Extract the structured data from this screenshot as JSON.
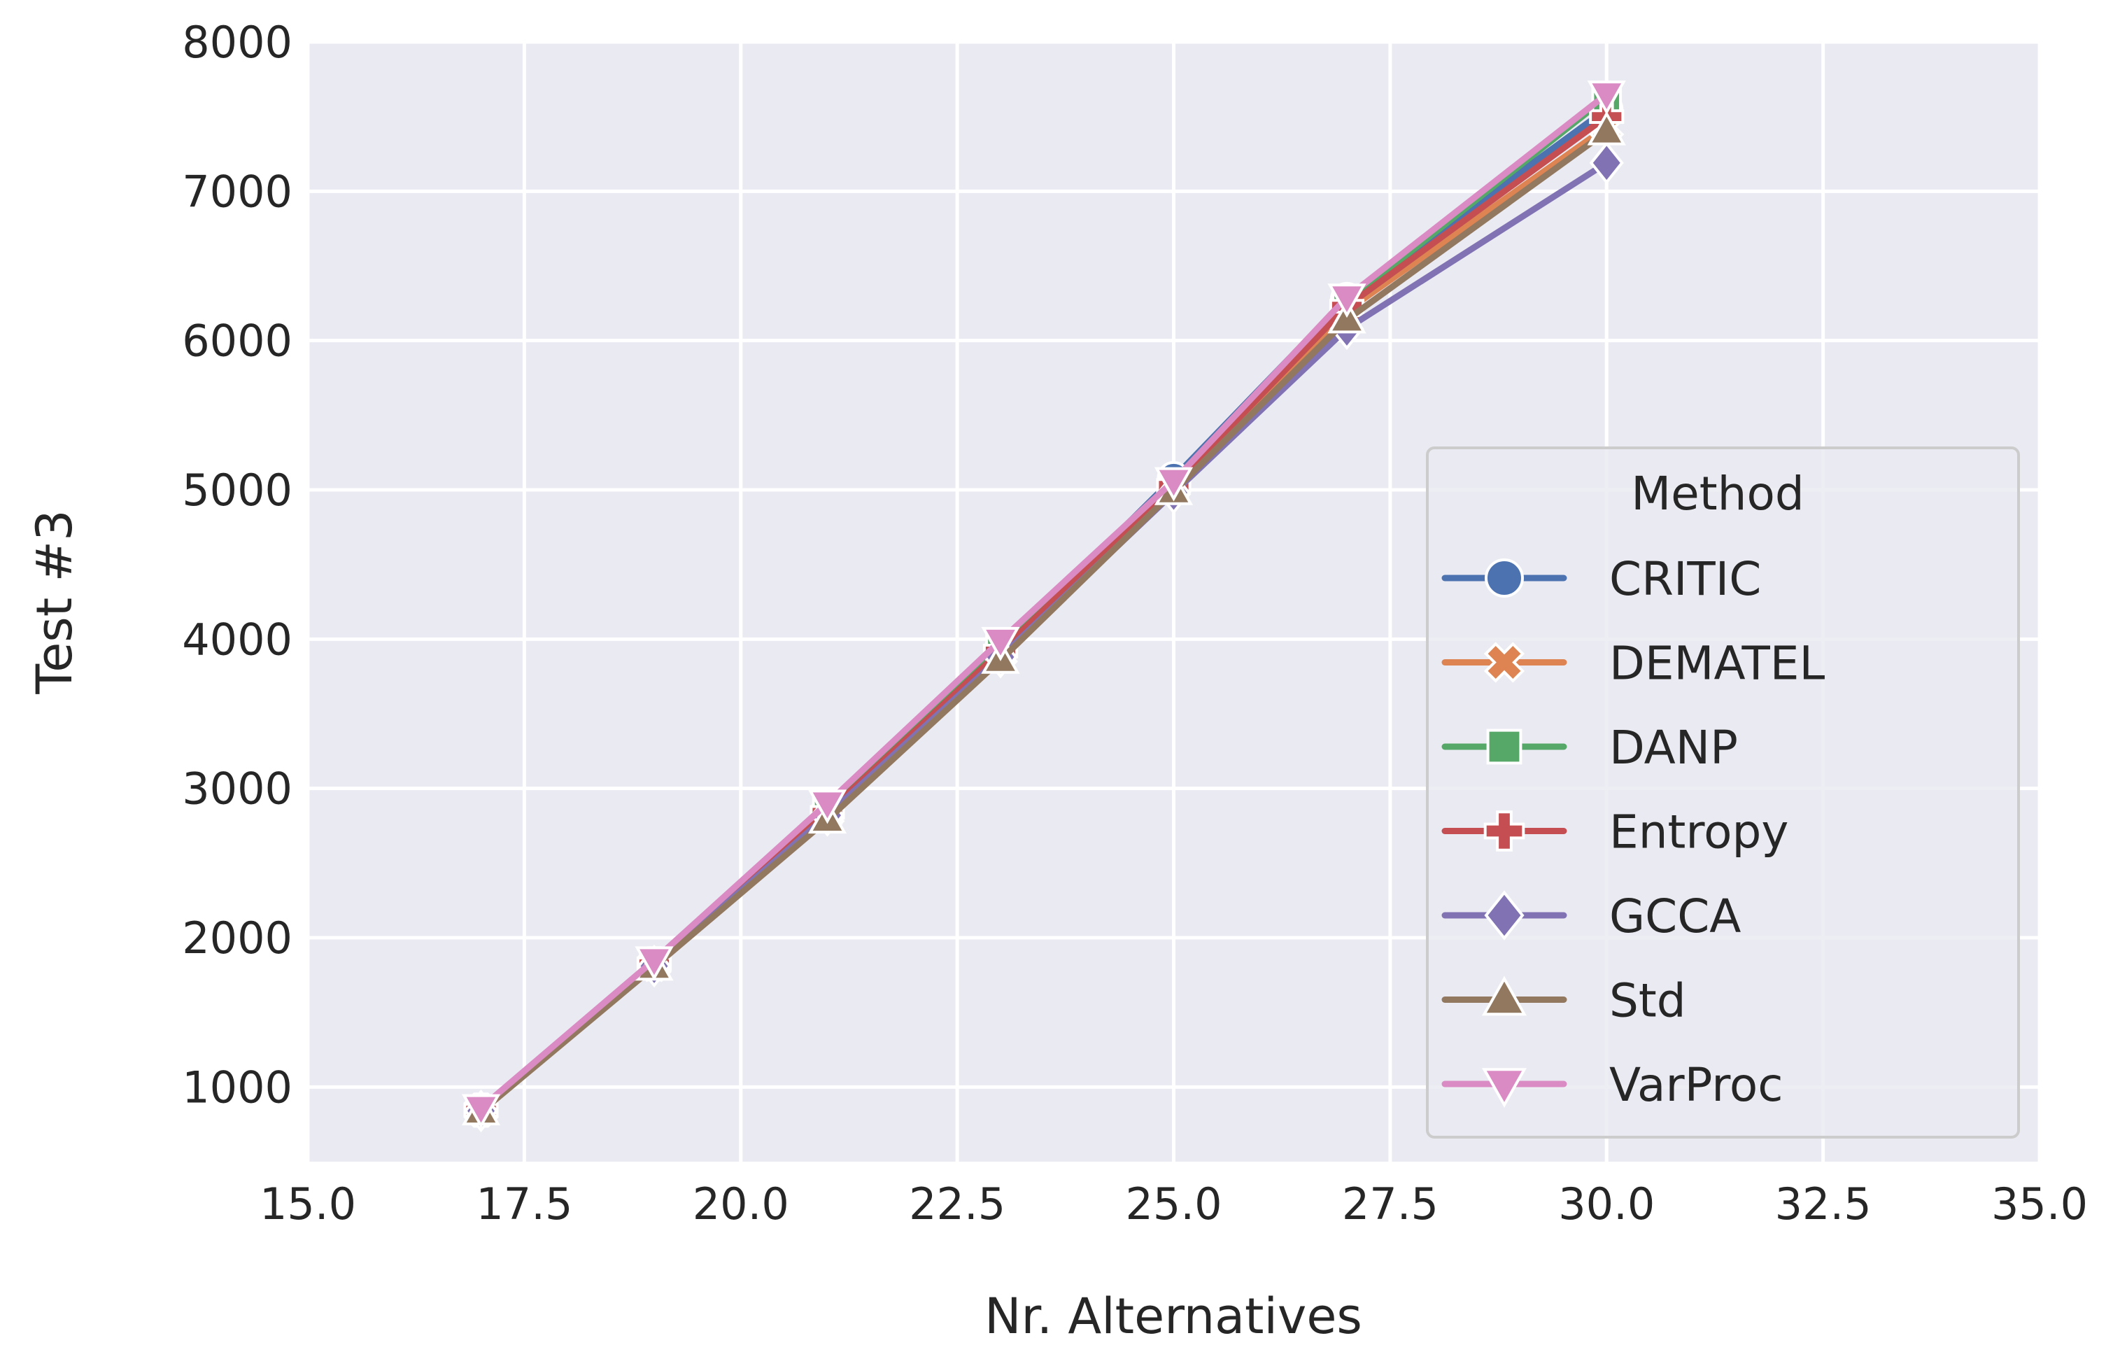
{
  "chart_data": {
    "type": "line",
    "title": "",
    "xlabel": "Nr. Alternatives",
    "ylabel": "Test #3",
    "xlim": [
      15.0,
      35.0
    ],
    "ylim": [
      500,
      8000
    ],
    "xticks": [
      "15.0",
      "17.5",
      "20.0",
      "22.5",
      "25.0",
      "27.5",
      "30.0",
      "32.5",
      "35.0"
    ],
    "xtick_values": [
      15.0,
      17.5,
      20.0,
      22.5,
      25.0,
      27.5,
      30.0,
      32.5,
      35.0
    ],
    "yticks": [
      "1000",
      "2000",
      "3000",
      "4000",
      "5000",
      "6000",
      "7000",
      "8000"
    ],
    "ytick_values": [
      1000,
      2000,
      3000,
      4000,
      5000,
      6000,
      7000,
      8000
    ],
    "grid": true,
    "x": [
      17,
      19,
      21,
      23,
      25,
      27,
      30
    ],
    "legend": {
      "title": "Method",
      "position": "lower-right"
    },
    "series": [
      {
        "name": "CRITIC",
        "color": "#4c72b0",
        "marker": "circle",
        "values": [
          850,
          1830,
          2850,
          3930,
          5080,
          6280,
          7550
        ]
      },
      {
        "name": "DEMATEL",
        "color": "#dd8452",
        "marker": "x",
        "values": [
          845,
          1820,
          2830,
          3900,
          5020,
          6200,
          7430
        ]
      },
      {
        "name": "DANP",
        "color": "#55a868",
        "marker": "square",
        "values": [
          850,
          1830,
          2860,
          3950,
          5040,
          6260,
          7630
        ]
      },
      {
        "name": "Entropy",
        "color": "#c44e52",
        "marker": "plus",
        "values": [
          845,
          1825,
          2840,
          3920,
          5030,
          6230,
          7500
        ]
      },
      {
        "name": "GCCA",
        "color": "#8172b3",
        "marker": "diamond",
        "values": [
          840,
          1810,
          2820,
          3880,
          4980,
          6080,
          7190
        ]
      },
      {
        "name": "Std",
        "color": "#937860",
        "marker": "triangle-up",
        "values": [
          835,
          1805,
          2790,
          3860,
          4990,
          6140,
          7400
        ]
      },
      {
        "name": "VarProc",
        "color": "#da8bc3",
        "marker": "triangle-down",
        "values": [
          860,
          1850,
          2900,
          3990,
          5060,
          6290,
          7650
        ]
      }
    ]
  },
  "colors": {
    "plot_background": "#eaeaf2",
    "grid": "#ffffff",
    "text": "#262626"
  }
}
